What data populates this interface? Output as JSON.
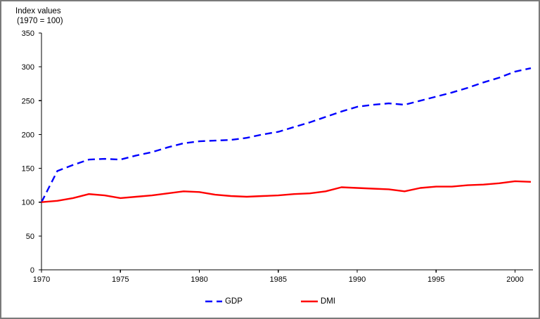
{
  "page": {
    "background": "#ffffff",
    "frame_border_color": "#7a7a7a",
    "axis_color": "#000000",
    "text_color": "#000000"
  },
  "chart_data": {
    "type": "line",
    "title": "Index values",
    "subtitle": "(1970 = 100)",
    "xlabel": "",
    "ylabel": "Index values (1970 = 100)",
    "grid": false,
    "legend_position": "bottom-center",
    "xlim": [
      1970,
      2001
    ],
    "ylim": [
      0,
      350
    ],
    "ytick_step": 50,
    "yticks": [
      0,
      50,
      100,
      150,
      200,
      250,
      300,
      350
    ],
    "xticks": [
      1970,
      1975,
      1980,
      1985,
      1990,
      1995,
      2000
    ],
    "x": [
      1970,
      1971,
      1972,
      1973,
      1974,
      1975,
      1976,
      1977,
      1978,
      1979,
      1980,
      1981,
      1982,
      1983,
      1984,
      1985,
      1986,
      1987,
      1988,
      1989,
      1990,
      1991,
      1992,
      1993,
      1994,
      1995,
      1996,
      1997,
      1998,
      1999,
      2000,
      2001
    ],
    "series": [
      {
        "name": "GDP",
        "color": "#0000ff",
        "style": "dashed",
        "values": [
          100,
          146,
          155,
          163,
          164,
          163,
          169,
          174,
          181,
          187,
          190,
          191,
          192,
          195,
          200,
          204,
          211,
          218,
          226,
          234,
          241,
          244,
          246,
          244,
          250,
          256,
          262,
          269,
          277,
          284,
          293,
          298
        ]
      },
      {
        "name": "DMI",
        "color": "#ff0000",
        "style": "solid",
        "values": [
          100,
          102,
          106,
          112,
          110,
          106,
          108,
          110,
          113,
          116,
          115,
          111,
          109,
          108,
          109,
          110,
          112,
          113,
          116,
          122,
          121,
          120,
          119,
          116,
          121,
          123,
          123,
          125,
          126,
          128,
          131,
          130
        ]
      }
    ]
  }
}
